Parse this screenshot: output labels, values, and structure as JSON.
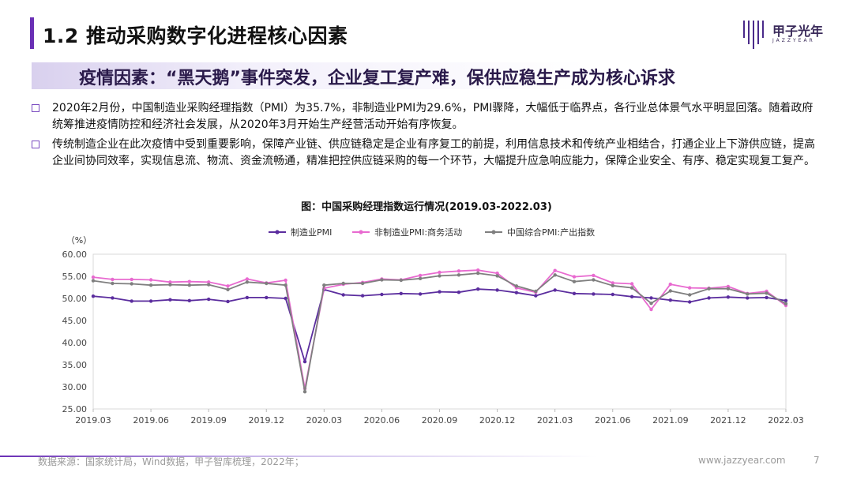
{
  "header": {
    "title": "1.2 推动采购数字化进程核心因素",
    "logo_text": "甲子光年",
    "logo_sub": "JAZZYEAR"
  },
  "subtitle": "疫情因素：“黑天鹅”事件突发，企业复工复产难，保供应稳生产成为核心诉求",
  "bullets": [
    "2020年2月份，中国制造业采购经理指数（PMI）为35.7%，非制造业PMI为29.6%，PMI骤降，大幅低于临界点，各行业总体景气水平明显回落。随着政府统筹推进疫情防控和经济社会发展，从2020年3月开始生产经营活动开始有序恢复。",
    "传统制造企业在此次疫情中受到重要影响，保障产业链、供应链稳定是企业有序复工的前提，利用信息技术和传统产业相结合，打通企业上下游供应链，提高企业间协同效率，实现信息流、物流、资金流畅通，精准把控供应链采购的每一个环节，大幅提升应急响应能力，保障企业安全、有序、稳定实现复工复产。"
  ],
  "chart_title": "图：中国采购经理指数运行情况(2019.03-2022.03)",
  "chart_data": {
    "type": "line",
    "title": "图：中国采购经理指数运行情况(2019.03-2022.03)",
    "ylabel": "（%）",
    "ylim": [
      25,
      60
    ],
    "yticks": [
      "25.00",
      "30.00",
      "35.00",
      "40.00",
      "45.00",
      "50.00",
      "55.00",
      "60.00"
    ],
    "xtick_labels": [
      "2019.03",
      "2019.06",
      "2019.09",
      "2019.12",
      "2020.03",
      "2020.06",
      "2020.09",
      "2020.12",
      "2021.03",
      "2021.06",
      "2021.09",
      "2021.12",
      "2022.03"
    ],
    "x": [
      "2019.03",
      "2019.04",
      "2019.05",
      "2019.06",
      "2019.07",
      "2019.08",
      "2019.09",
      "2019.10",
      "2019.11",
      "2019.12",
      "2020.01",
      "2020.02",
      "2020.03",
      "2020.04",
      "2020.05",
      "2020.06",
      "2020.07",
      "2020.08",
      "2020.09",
      "2020.10",
      "2020.11",
      "2020.12",
      "2021.01",
      "2021.02",
      "2021.03",
      "2021.04",
      "2021.05",
      "2021.06",
      "2021.07",
      "2021.08",
      "2021.09",
      "2021.10",
      "2021.11",
      "2021.12",
      "2022.01",
      "2022.02",
      "2022.03"
    ],
    "legend_position": "top",
    "series": [
      {
        "name": "制造业PMI",
        "color": "#5b2d9e",
        "values": [
          50.5,
          50.1,
          49.4,
          49.4,
          49.7,
          49.5,
          49.8,
          49.3,
          50.2,
          50.2,
          50.0,
          35.7,
          52.0,
          50.8,
          50.6,
          50.9,
          51.1,
          51.0,
          51.5,
          51.4,
          52.1,
          51.9,
          51.3,
          50.6,
          51.9,
          51.1,
          51.0,
          50.9,
          50.4,
          50.1,
          49.6,
          49.2,
          50.1,
          50.3,
          50.1,
          50.2,
          49.5
        ]
      },
      {
        "name": "非制造业PMI:商务活动",
        "color": "#e86ad0",
        "values": [
          54.8,
          54.3,
          54.3,
          54.2,
          53.7,
          53.8,
          53.7,
          52.8,
          54.4,
          53.5,
          54.1,
          29.6,
          52.3,
          53.2,
          53.6,
          54.4,
          54.2,
          55.2,
          55.9,
          56.2,
          56.4,
          55.7,
          52.4,
          51.4,
          56.3,
          54.9,
          55.2,
          53.5,
          53.3,
          47.5,
          53.2,
          52.4,
          52.3,
          52.7,
          51.1,
          51.6,
          48.4
        ]
      },
      {
        "name": "中国综合PMI:产出指数",
        "color": "#7f7f7f",
        "values": [
          54.0,
          53.4,
          53.3,
          53.0,
          53.1,
          53.0,
          53.1,
          52.0,
          53.7,
          53.4,
          53.0,
          28.9,
          53.0,
          53.4,
          53.4,
          54.2,
          54.1,
          54.5,
          55.1,
          55.3,
          55.7,
          55.1,
          52.8,
          51.6,
          55.3,
          53.8,
          54.2,
          52.9,
          52.4,
          48.9,
          51.7,
          50.8,
          52.2,
          52.2,
          51.0,
          51.2,
          48.8
        ]
      }
    ]
  },
  "footer": {
    "source": "数据来源：国家统计局，Wind数据，甲子智库梳理，2022年；",
    "url": "www.jazzyear.com",
    "page": "7"
  }
}
